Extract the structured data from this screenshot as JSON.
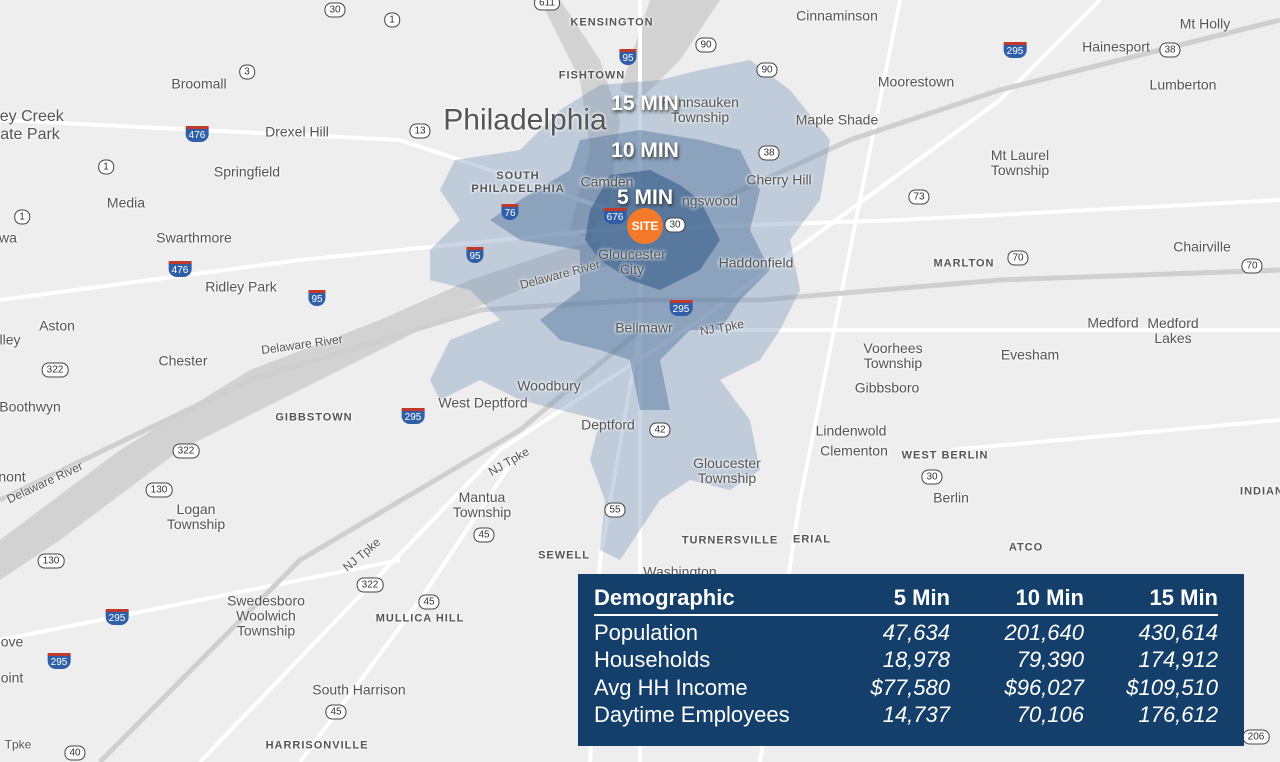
{
  "map": {
    "site_label": "SITE",
    "isochrone_labels": [
      "15 MIN",
      "10 MIN",
      "5 MIN"
    ],
    "colors": {
      "iso15": "#9fb3cc",
      "iso10": "#6f8fb4",
      "iso5": "#4a6f9a",
      "site": "#f47a2a",
      "panel": "#143f6b"
    },
    "places": [
      "KENSINGTON",
      "Cinnaminson",
      "Mt Holly",
      "Hainesport",
      "Lumberton",
      "Broomall",
      "FISHTOWN",
      "Moorestown",
      "Pennsauken Township",
      "Maple Shade",
      "Philadelphia",
      "ley Creek ate Park",
      "Drexel Hill",
      "Springfield",
      "Mt Laurel Township",
      "Cherry Hill",
      "Media",
      "SOUTH PHILADELPHIA",
      "Camden",
      "ngswood",
      "Swarthmore",
      "Chairville",
      "wa",
      "Gloucester City",
      "Haddonfield",
      "MARLTON",
      "Ridley Park",
      "Delaware River",
      "Aston",
      "Bellmawr",
      "NJ Tpke",
      "Medford",
      "Medford Lakes",
      "Delaware River",
      "Chester",
      "lley",
      "Voorhees Township",
      "Evesham",
      "Gibbsboro",
      "Woodbury",
      "West Deptford",
      "Boothwyn",
      "GIBBSTOWN",
      "Deptford",
      "Lindenwold",
      "Clementon",
      "WEST BERLIN",
      "Gloucester Township",
      "NJ Tpke",
      "Berlin",
      "nont",
      "Delaware River",
      "Mantua Township",
      "Logan Township",
      "INDIAN",
      "SEWELL",
      "TURNERSVILLE",
      "ERIAL",
      "ATCO",
      "Washington",
      "NJ Tpke",
      "Swedesboro Woolwich Township",
      "MULLICA HILL",
      "ove",
      "oint",
      "South Harrison",
      "HARRISONVILLE",
      "Tpke"
    ],
    "shields": [
      "30",
      "1",
      "611",
      "90",
      "95",
      "3",
      "90",
      "295",
      "38",
      "476",
      "13",
      "1",
      "38",
      "73",
      "1",
      "76",
      "676",
      "30",
      "95",
      "70",
      "70",
      "476",
      "295",
      "95",
      "322",
      "295",
      "42",
      "322",
      "130",
      "30",
      "55",
      "45",
      "130",
      "322",
      "45",
      "295",
      "295",
      "45",
      "40",
      "206"
    ]
  },
  "table": {
    "headers": [
      "Demographic",
      "5 Min",
      "10 Min",
      "15 Min"
    ],
    "rows": [
      [
        "Population",
        "47,634",
        "201,640",
        "430,614"
      ],
      [
        "Households",
        "18,978",
        "79,390",
        "174,912"
      ],
      [
        "Avg HH Income",
        "$77,580",
        "$96,027",
        "$109,510"
      ],
      [
        "Daytime Employees",
        "14,737",
        "70,106",
        "176,612"
      ]
    ]
  }
}
